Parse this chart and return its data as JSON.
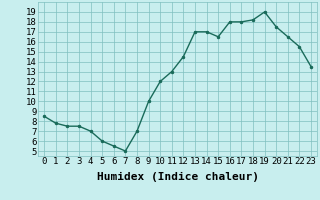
{
  "x": [
    0,
    1,
    2,
    3,
    4,
    5,
    6,
    7,
    8,
    9,
    10,
    11,
    12,
    13,
    14,
    15,
    16,
    17,
    18,
    19,
    20,
    21,
    22,
    23
  ],
  "y": [
    8.5,
    7.8,
    7.5,
    7.5,
    7.0,
    6.0,
    5.5,
    5.0,
    7.0,
    10.0,
    12.0,
    13.0,
    14.5,
    17.0,
    17.0,
    16.5,
    18.0,
    18.0,
    18.2,
    19.0,
    17.5,
    16.5,
    15.5,
    13.5
  ],
  "line_color": "#1a6b5a",
  "marker": ".",
  "marker_size": 3,
  "bg_color": "#c8eeee",
  "grid_color": "#80c0c0",
  "xlabel": "Humidex (Indice chaleur)",
  "xlim": [
    -0.5,
    23.5
  ],
  "ylim": [
    4.5,
    20.0
  ],
  "xtick_labels": [
    "0",
    "1",
    "2",
    "3",
    "4",
    "5",
    "6",
    "7",
    "8",
    "9",
    "10",
    "11",
    "12",
    "13",
    "14",
    "15",
    "16",
    "17",
    "18",
    "19",
    "20",
    "21",
    "22",
    "23"
  ],
  "ytick_values": [
    5,
    6,
    7,
    8,
    9,
    10,
    11,
    12,
    13,
    14,
    15,
    16,
    17,
    18,
    19
  ],
  "xlabel_fontsize": 8,
  "tick_fontsize": 6.5,
  "linewidth": 1.0
}
